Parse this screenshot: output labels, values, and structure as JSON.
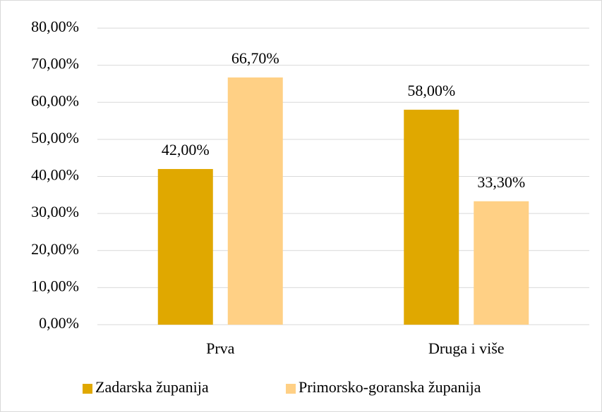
{
  "chart_data": {
    "type": "bar",
    "categories": [
      "Prva",
      "Druga i više"
    ],
    "series": [
      {
        "name": "Zadarska županija",
        "color": "#E0A800",
        "values": [
          42,
          58
        ],
        "value_labels": [
          "42,00%",
          "58,00%"
        ]
      },
      {
        "name": "Primorsko-goranska županija",
        "color": "#FFD085",
        "values": [
          66.7,
          33.3
        ],
        "value_labels": [
          "66,70%",
          "33,30%"
        ]
      }
    ],
    "ylim": [
      0,
      80
    ],
    "yticks": [
      {
        "value": 0,
        "label": "0,00%"
      },
      {
        "value": 10,
        "label": "10,00%"
      },
      {
        "value": 20,
        "label": "20,00%"
      },
      {
        "value": 30,
        "label": "30,00%"
      },
      {
        "value": 40,
        "label": "40,00%"
      },
      {
        "value": 50,
        "label": "50,00%"
      },
      {
        "value": 60,
        "label": "60,00%"
      },
      {
        "value": 70,
        "label": "70,00%"
      },
      {
        "value": 80,
        "label": "80,00%"
      }
    ],
    "grid": true,
    "legend": "bottom"
  }
}
